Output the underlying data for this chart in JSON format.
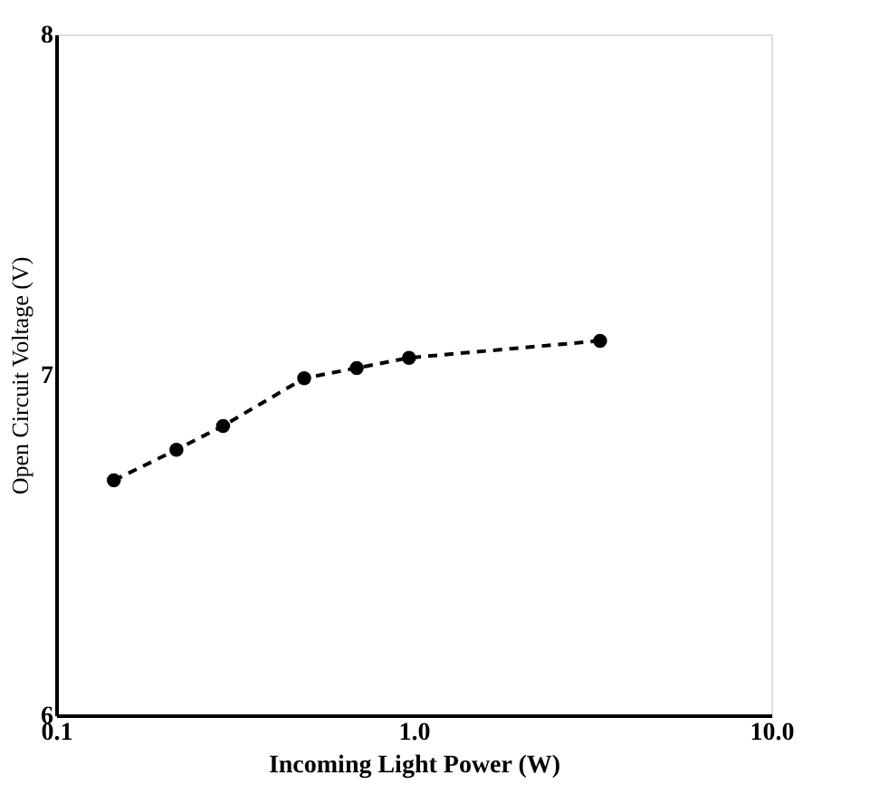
{
  "chart_data": {
    "type": "line",
    "xlabel": "Incoming Light Power (W)",
    "ylabel": "Open Circuit Voltage (V)",
    "x": [
      0.145,
      0.217,
      0.293,
      0.494,
      0.693,
      0.97,
      3.32
    ],
    "series": [
      {
        "color": "#000000",
        "values": [
          6.69,
          6.78,
          6.85,
          6.99,
          7.02,
          7.05,
          7.1
        ]
      }
    ],
    "log": "x",
    "xlim": [
      0.1,
      10
    ],
    "xticks": [
      {
        "value": 0.1,
        "label": "0.1"
      },
      {
        "value": 1,
        "label": "1.0"
      },
      {
        "value": 10,
        "label": "10.0"
      }
    ],
    "ylim": [
      6,
      8
    ],
    "yticks": [
      6,
      7,
      8
    ],
    "grid": false,
    "marker": "circle",
    "line_style": "dashed"
  }
}
